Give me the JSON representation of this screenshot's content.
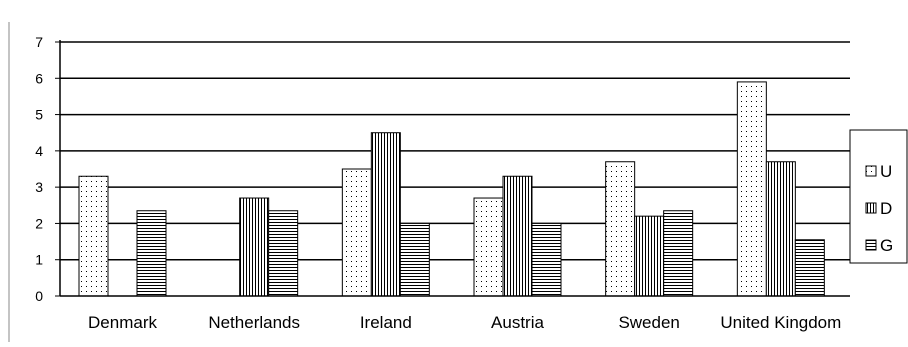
{
  "chart_data": {
    "type": "bar",
    "title": "",
    "xlabel": "",
    "ylabel": "",
    "ylim": [
      0,
      7
    ],
    "yticks": [
      "0",
      "1",
      "2",
      "3",
      "4",
      "5",
      "6",
      "7"
    ],
    "grid": "horizontal major lines",
    "legend_position": "right",
    "categories": [
      "Denmark",
      "Netherlands",
      "Ireland",
      "Austria",
      "Sweden",
      "United Kingdom"
    ],
    "series": [
      {
        "name": "U",
        "pattern": "dots",
        "values": [
          3.3,
          null,
          3.5,
          2.7,
          3.7,
          5.9
        ]
      },
      {
        "name": "D",
        "pattern": "vertical-lines",
        "values": [
          null,
          2.7,
          4.5,
          3.3,
          2.2,
          3.7
        ]
      },
      {
        "name": "G",
        "pattern": "horizontal-lines",
        "values": [
          2.35,
          2.35,
          2.0,
          2.0,
          2.35,
          1.55
        ]
      }
    ]
  },
  "colors": {
    "fill": "#ffffff",
    "stroke": "#000000",
    "pattern": "#000000"
  }
}
